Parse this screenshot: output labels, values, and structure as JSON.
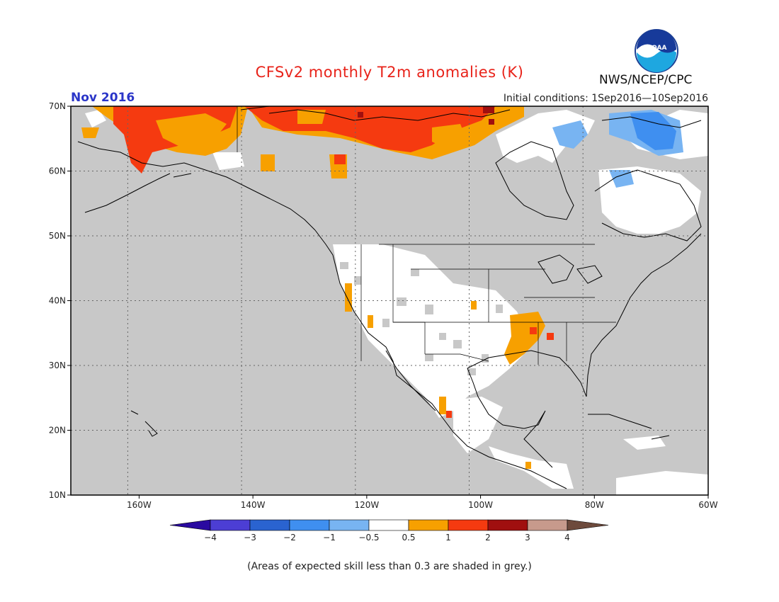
{
  "title": "CFSv2 monthly T2m anomalies (K)",
  "period": "Nov 2016",
  "initial_conditions": "Initial conditions: 1Sep2016—10Sep2016",
  "agency": "NWS/NCEP/CPC",
  "logo_icon": "noaa-logo-icon",
  "footnote": "(Areas of expected skill less than 0.3 are shaded in grey.)",
  "map": {
    "lat_labels": [
      "70N",
      "60N",
      "50N",
      "40N",
      "30N",
      "20N",
      "10N"
    ],
    "lon_labels": [
      "160W",
      "140W",
      "120W",
      "100W",
      "80W",
      "60W"
    ],
    "lat_range": [
      10,
      70
    ],
    "lon_range": [
      -172,
      -60
    ],
    "grey_color": "#c8c8c8",
    "coast_color": "#000000"
  },
  "colorbar": {
    "labels": [
      "−4",
      "−3",
      "−2",
      "−1",
      "−0.5",
      "0.5",
      "1",
      "2",
      "3",
      "4"
    ],
    "colors": [
      "#2a0aa0",
      "#4c3ed4",
      "#2a63d0",
      "#3f8ff0",
      "#78b4f2",
      "#ffffff",
      "#f7a000",
      "#f53a10",
      "#a00f0f",
      "#c79a8c",
      "#6d4a3c"
    ]
  }
}
